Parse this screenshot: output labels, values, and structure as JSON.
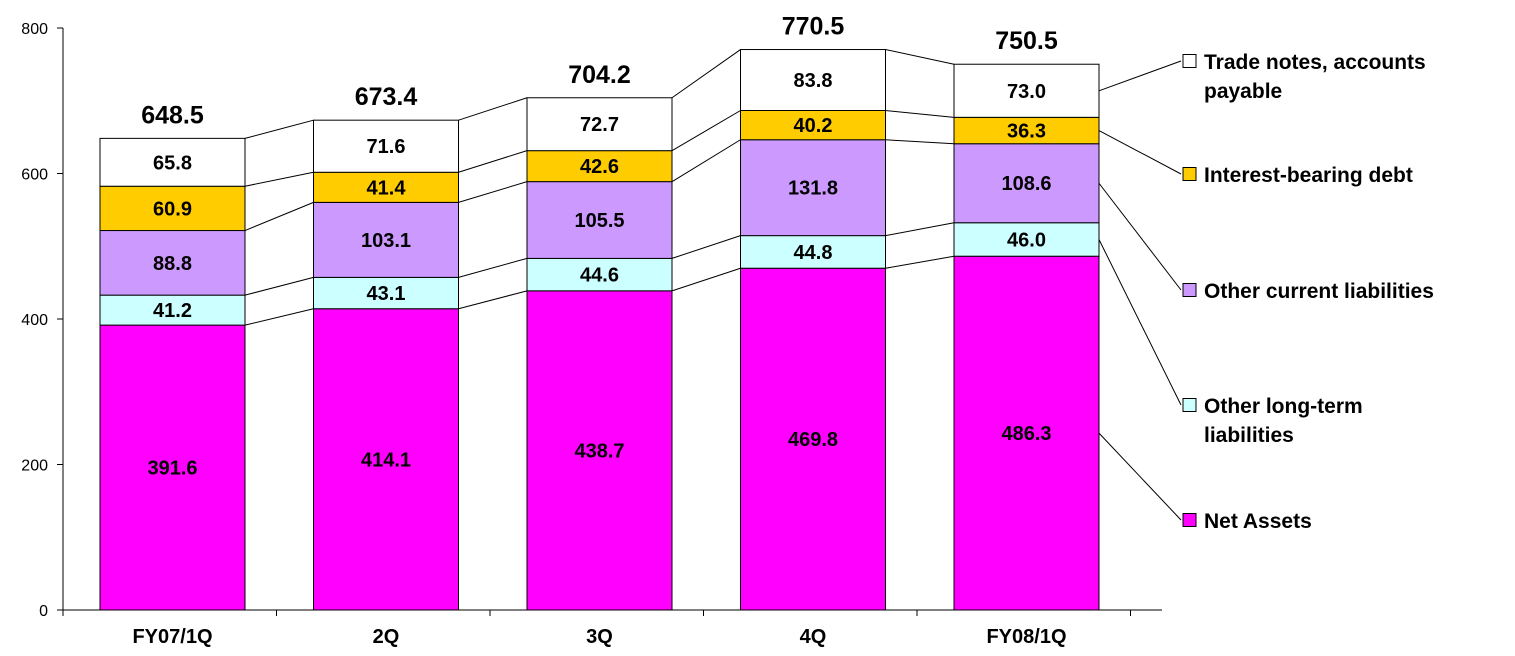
{
  "chart_data": {
    "type": "bar",
    "stacked": true,
    "categories": [
      "FY07/1Q",
      "2Q",
      "3Q",
      "4Q",
      "FY08/1Q"
    ],
    "totals": [
      648.5,
      673.4,
      704.2,
      770.5,
      750.5
    ],
    "series": [
      {
        "name": "Net Assets",
        "values": [
          391.6,
          414.1,
          438.7,
          469.8,
          486.3
        ],
        "color": "#FF00FF"
      },
      {
        "name": "Other long-term liabilities",
        "values": [
          41.2,
          43.1,
          44.6,
          44.8,
          46.0
        ],
        "color": "#CCFFFF"
      },
      {
        "name": "Other current liabilities",
        "values": [
          88.8,
          103.1,
          105.5,
          131.8,
          108.6
        ],
        "color": "#CC99FF"
      },
      {
        "name": "Interest-bearing debt",
        "values": [
          60.9,
          41.4,
          42.6,
          40.2,
          36.3
        ],
        "color": "#FFCC00"
      },
      {
        "name": "Trade notes, accounts payable",
        "values": [
          65.8,
          71.6,
          72.7,
          83.8,
          73.0
        ],
        "color": "#FFFFFF"
      }
    ],
    "legend": [
      {
        "lines": [
          "Trade notes, accounts",
          "payable"
        ],
        "series": 4
      },
      {
        "lines": [
          "Interest-bearing debt"
        ],
        "series": 3
      },
      {
        "lines": [
          "Other current liabilities"
        ],
        "series": 2
      },
      {
        "lines": [
          "Other long-term",
          "liabilities"
        ],
        "series": 1
      },
      {
        "lines": [
          "Net Assets"
        ],
        "series": 0
      }
    ],
    "yticks": [
      "0",
      "200",
      "400",
      "600",
      "800"
    ],
    "ylim": [
      0,
      800
    ],
    "grid": false,
    "legend_position": "right"
  }
}
